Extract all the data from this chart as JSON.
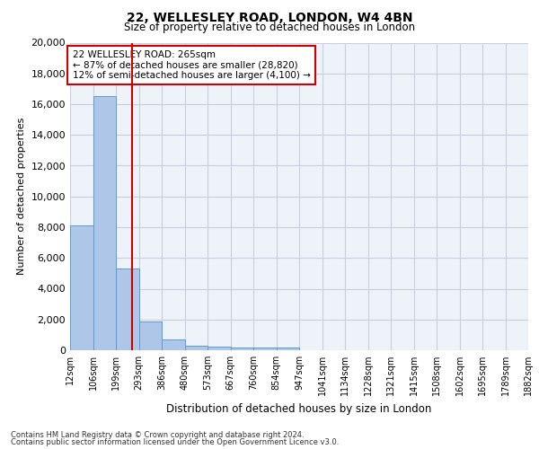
{
  "title1": "22, WELLESLEY ROAD, LONDON, W4 4BN",
  "title2": "Size of property relative to detached houses in London",
  "xlabel": "Distribution of detached houses by size in London",
  "ylabel": "Number of detached properties",
  "bins": [
    "12sqm",
    "106sqm",
    "199sqm",
    "293sqm",
    "386sqm",
    "480sqm",
    "573sqm",
    "667sqm",
    "760sqm",
    "854sqm",
    "947sqm",
    "1041sqm",
    "1134sqm",
    "1228sqm",
    "1321sqm",
    "1415sqm",
    "1508sqm",
    "1602sqm",
    "1695sqm",
    "1789sqm",
    "1882sqm"
  ],
  "values": [
    8100,
    16500,
    5300,
    1850,
    700,
    320,
    230,
    200,
    190,
    150,
    0,
    0,
    0,
    0,
    0,
    0,
    0,
    0,
    0,
    0
  ],
  "bar_color": "#aec6e8",
  "bar_edge_color": "#5b9bd5",
  "annotation_text": "22 WELLESLEY ROAD: 265sqm\n← 87% of detached houses are smaller (28,820)\n12% of semi-detached houses are larger (4,100) →",
  "annotation_box_color": "#ffffff",
  "annotation_box_edge": "#cc0000",
  "red_line_color": "#cc0000",
  "ylim": [
    0,
    20000
  ],
  "yticks": [
    0,
    2000,
    4000,
    6000,
    8000,
    10000,
    12000,
    14000,
    16000,
    18000,
    20000
  ],
  "footer1": "Contains HM Land Registry data © Crown copyright and database right 2024.",
  "footer2": "Contains public sector information licensed under the Open Government Licence v3.0.",
  "bg_color": "#eef2f9",
  "grid_color": "#c8d0de"
}
